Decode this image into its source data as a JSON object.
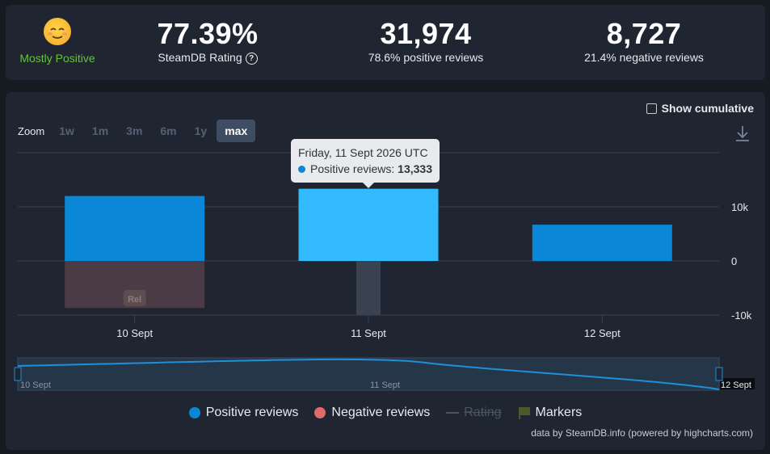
{
  "summary": {
    "verdict": "Mostly Positive",
    "rating_value": "77.39%",
    "rating_label": "SteamDB Rating",
    "rating_help": "?",
    "positive_count": "31,974",
    "positive_label": "78.6% positive reviews",
    "negative_count": "8,727",
    "negative_label": "21.4% negative reviews"
  },
  "controls": {
    "show_cumulative": "Show cumulative",
    "zoom_label": "Zoom",
    "zoom_options": [
      "1w",
      "1m",
      "3m",
      "6m",
      "1y",
      "max"
    ],
    "zoom_active": "max"
  },
  "tooltip": {
    "date": "Friday, 11 Sept 2026 UTC",
    "series": "Positive reviews:",
    "value": "13,333"
  },
  "chart_data": {
    "type": "bar",
    "categories": [
      "10 Sept",
      "11 Sept",
      "12 Sept"
    ],
    "series": [
      {
        "name": "Positive reviews",
        "values": [
          12000,
          13333,
          6700
        ],
        "color": "#0b87d7"
      },
      {
        "name": "Negative reviews",
        "values": [
          -8700,
          0,
          0
        ],
        "color": "#4b3b45"
      }
    ],
    "yticks": [
      "10k",
      "0",
      "-10k"
    ],
    "ylim": [
      -10000,
      20000
    ],
    "highlight_category": "11 Sept",
    "highlight_color": "#33bbff",
    "marker_label": "Rel",
    "navigator": {
      "labels": [
        "10 Sept",
        "11 Sept",
        "12 Sept"
      ]
    },
    "legend": [
      "Positive reviews",
      "Negative reviews",
      "Rating",
      "Markers"
    ]
  },
  "credit": "data by SteamDB.info (powered by highcharts.com)"
}
